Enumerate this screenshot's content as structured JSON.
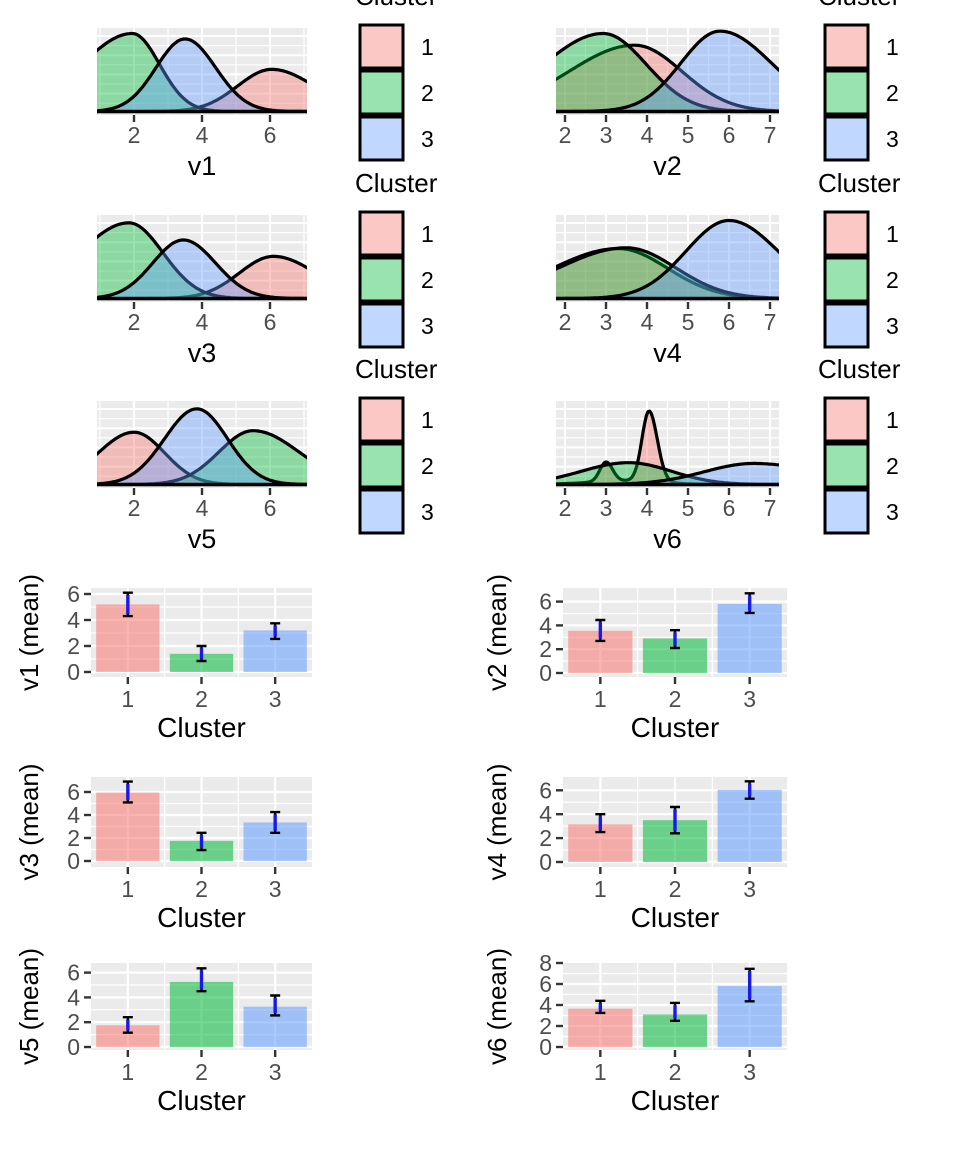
{
  "legend": {
    "title": "Cluster",
    "entries": [
      {
        "label": "1"
      },
      {
        "label": "2"
      },
      {
        "label": "3"
      }
    ]
  },
  "colors": {
    "clusters": [
      "#F8766D",
      "#00BA38",
      "#619CFF"
    ],
    "panel_bg": "#EBEBEB",
    "gridline": "#FFFFFF",
    "tick_mark": "#333333",
    "tick_label": "#4D4D4D",
    "axis_title": "#000000",
    "curve_stroke": "#000000",
    "errorbar_black": "#000000",
    "errorbar_blue": "#1A1AE6",
    "density_fill_alpha": 0.4,
    "bar_fill_alpha": 0.55,
    "legend_fill_alpha": 0.4
  },
  "chart_data": [
    {
      "id": "v1-density",
      "type": "density",
      "xlabel": "v1",
      "legend_title": "Cluster",
      "x_ticks": [
        2,
        4,
        6
      ],
      "x_range": [
        0.9,
        7.1
      ],
      "series": [
        {
          "name": "1",
          "components": [
            [
              6.05,
              1.0,
              1.25,
              0.54
            ]
          ]
        },
        {
          "name": "2",
          "components": [
            [
              1.95,
              1.48,
              0.8,
              1.0
            ]
          ]
        },
        {
          "name": "3",
          "components": [
            [
              3.5,
              0.85,
              0.9,
              0.93
            ]
          ]
        }
      ]
    },
    {
      "id": "v2-density",
      "type": "density",
      "xlabel": "v2",
      "legend_title": "Cluster",
      "x_ticks": [
        2,
        3,
        4,
        5,
        6,
        7
      ],
      "x_range": [
        1.78,
        7.22
      ],
      "series": [
        {
          "name": "1",
          "components": [
            [
              3.7,
              1.6,
              1.15,
              0.85
            ]
          ]
        },
        {
          "name": "2",
          "components": [
            [
              2.93,
              1.45,
              1.05,
              1.0
            ]
          ]
        },
        {
          "name": "3",
          "components": [
            [
              5.78,
              0.95,
              1.25,
              1.03
            ]
          ]
        }
      ]
    },
    {
      "id": "v3-density",
      "type": "density",
      "xlabel": "v3",
      "legend_title": "Cluster",
      "x_ticks": [
        2,
        4,
        6
      ],
      "x_range": [
        0.9,
        7.1
      ],
      "series": [
        {
          "name": "1",
          "components": [
            [
              6.1,
              1.0,
              1.25,
              0.54
            ]
          ]
        },
        {
          "name": "2",
          "components": [
            [
              1.85,
              1.45,
              1.0,
              0.97
            ]
          ]
        },
        {
          "name": "3",
          "components": [
            [
              3.45,
              0.9,
              0.95,
              0.75
            ]
          ]
        }
      ]
    },
    {
      "id": "v4-density",
      "type": "density",
      "xlabel": "v4",
      "legend_title": "Cluster",
      "x_ticks": [
        2,
        3,
        4,
        5,
        6,
        7
      ],
      "x_range": [
        1.78,
        7.22
      ],
      "series": [
        {
          "name": "1",
          "components": [
            [
              3.3,
              1.6,
              1.2,
              0.64
            ]
          ]
        },
        {
          "name": "2",
          "components": [
            [
              3.5,
              1.65,
              1.2,
              0.65
            ]
          ]
        },
        {
          "name": "3",
          "components": [
            [
              6.0,
              1.05,
              1.2,
              1.0
            ]
          ]
        }
      ]
    },
    {
      "id": "v5-density",
      "type": "density",
      "xlabel": "v5",
      "legend_title": "Cluster",
      "x_ticks": [
        2,
        4,
        6
      ],
      "x_range": [
        0.9,
        7.1
      ],
      "series": [
        {
          "name": "1",
          "components": [
            [
              2.0,
              1.05,
              0.9,
              0.67
            ]
          ]
        },
        {
          "name": "2",
          "components": [
            [
              5.5,
              1.0,
              1.35,
              0.69
            ]
          ]
        },
        {
          "name": "3",
          "components": [
            [
              3.85,
              0.95,
              0.9,
              0.97
            ]
          ]
        }
      ]
    },
    {
      "id": "v6-density",
      "type": "density",
      "xlabel": "v6",
      "legend_title": "Cluster",
      "x_ticks": [
        2,
        3,
        4,
        5,
        6,
        7
      ],
      "x_range": [
        1.78,
        7.22
      ],
      "series": [
        {
          "name": "1",
          "components": [
            [
              4.05,
              0.17,
              0.2,
              0.9
            ],
            [
              3.0,
              0.15,
              0.16,
              0.25
            ],
            [
              3.7,
              1.0,
              0.7,
              0.05
            ]
          ]
        },
        {
          "name": "2",
          "components": [
            [
              3.55,
              1.15,
              1.05,
              0.28
            ]
          ]
        },
        {
          "name": "3",
          "components": [
            [
              6.6,
              1.2,
              1.6,
              0.27
            ]
          ]
        }
      ]
    },
    {
      "id": "v1-bar",
      "type": "bar",
      "xlabel": "Cluster",
      "ylabel": "v1 (mean)",
      "categories": [
        "1",
        "2",
        "3"
      ],
      "values": [
        5.2,
        1.4,
        3.2
      ],
      "err_low": [
        4.3,
        0.85,
        2.55
      ],
      "err_high": [
        6.1,
        2.0,
        3.75
      ],
      "y_ticks": [
        0,
        2,
        4,
        6
      ]
    },
    {
      "id": "v2-bar",
      "type": "bar",
      "xlabel": "Cluster",
      "ylabel": "v2 (mean)",
      "categories": [
        "1",
        "2",
        "3"
      ],
      "values": [
        3.55,
        2.9,
        5.8
      ],
      "err_low": [
        2.7,
        2.1,
        5.05
      ],
      "err_high": [
        4.45,
        3.6,
        6.7
      ],
      "y_ticks": [
        0,
        2,
        4,
        6
      ]
    },
    {
      "id": "v3-bar",
      "type": "bar",
      "xlabel": "Cluster",
      "ylabel": "v3 (mean)",
      "categories": [
        "1",
        "2",
        "3"
      ],
      "values": [
        5.95,
        1.75,
        3.35
      ],
      "err_low": [
        5.1,
        0.95,
        2.45
      ],
      "err_high": [
        6.9,
        2.45,
        4.25
      ],
      "y_ticks": [
        0,
        2,
        4,
        6
      ]
    },
    {
      "id": "v4-bar",
      "type": "bar",
      "xlabel": "Cluster",
      "ylabel": "v4 (mean)",
      "categories": [
        "1",
        "2",
        "3"
      ],
      "values": [
        3.15,
        3.5,
        6.05
      ],
      "err_low": [
        2.5,
        2.4,
        5.3
      ],
      "err_high": [
        4.0,
        4.6,
        6.75
      ],
      "y_ticks": [
        0,
        2,
        4,
        6
      ]
    },
    {
      "id": "v5-bar",
      "type": "bar",
      "xlabel": "Cluster",
      "ylabel": "v5 (mean)",
      "categories": [
        "1",
        "2",
        "3"
      ],
      "values": [
        1.75,
        5.25,
        3.25
      ],
      "err_low": [
        1.15,
        4.5,
        2.55
      ],
      "err_high": [
        2.4,
        6.35,
        4.15
      ],
      "y_ticks": [
        0,
        2,
        4,
        6
      ]
    },
    {
      "id": "v6-bar",
      "type": "bar",
      "xlabel": "Cluster",
      "ylabel": "v6 (mean)",
      "categories": [
        "1",
        "2",
        "3"
      ],
      "values": [
        3.65,
        3.1,
        5.8
      ],
      "err_low": [
        3.25,
        2.5,
        4.35
      ],
      "err_high": [
        4.4,
        4.2,
        7.45
      ],
      "y_ticks": [
        0,
        2,
        4,
        6,
        8
      ]
    }
  ]
}
